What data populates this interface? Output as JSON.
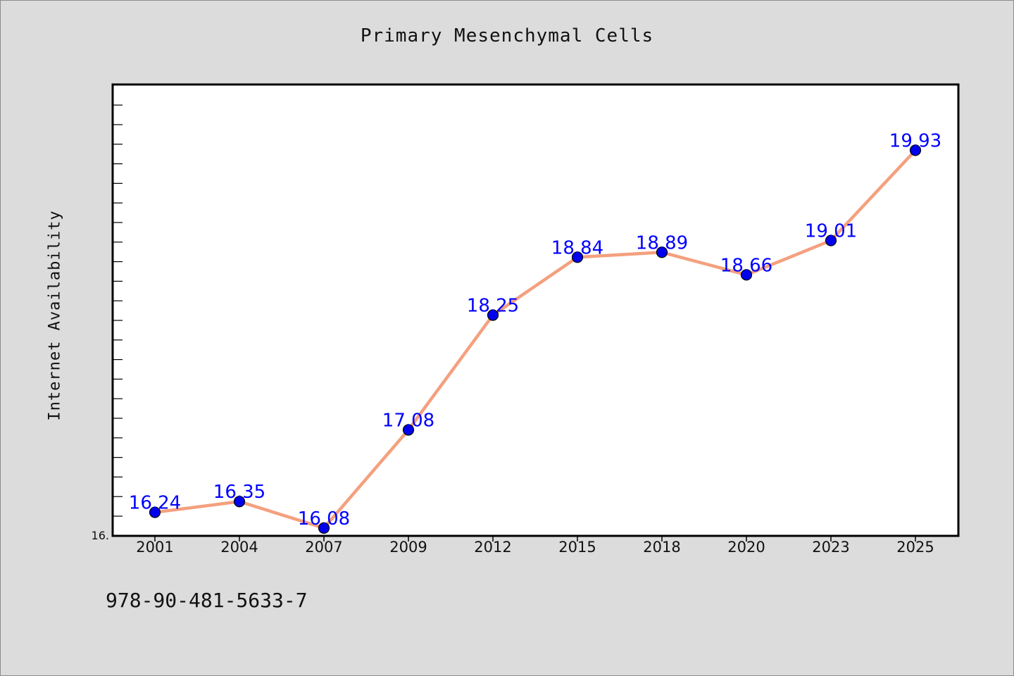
{
  "chart_data": {
    "type": "line",
    "title": "Primary Mesenchymal Cells",
    "xlabel": "",
    "ylabel": "Internet Availability",
    "categories": [
      "2001",
      "2004",
      "2007",
      "2009",
      "2012",
      "2015",
      "2018",
      "2020",
      "2023",
      "2025"
    ],
    "series": [
      {
        "values": [
          16.24,
          16.35,
          16.08,
          17.08,
          18.25,
          18.84,
          18.89,
          18.66,
          19.01,
          19.93
        ],
        "data_labels": [
          "16.24",
          "16.35",
          "16.08",
          "17.08",
          "18.25",
          "18.84",
          "18.89",
          "18.66",
          "19.01",
          "19.93"
        ]
      }
    ],
    "y_tick_label": "16.",
    "ylim": [
      16.0,
      20.6
    ],
    "grid": false,
    "colors": {
      "line": "#f4a07e",
      "marker": "#0000ee",
      "label": "#0000ff"
    }
  },
  "footnote": "978-90-481-5633-7"
}
